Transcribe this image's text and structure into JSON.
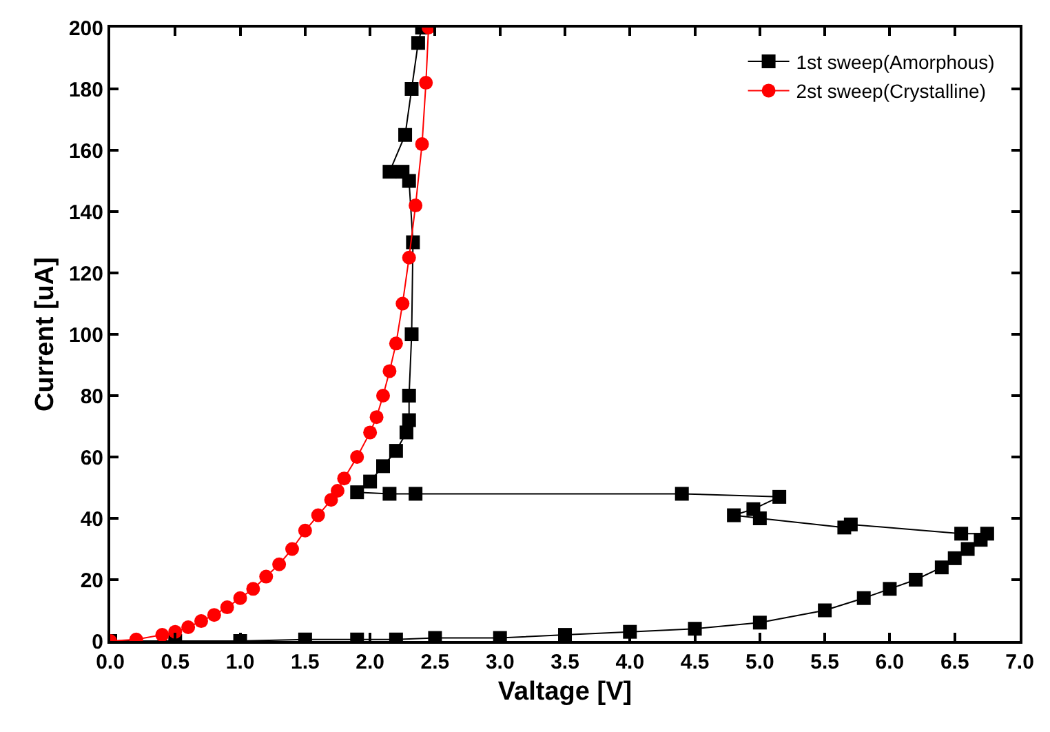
{
  "chart_data": {
    "type": "line",
    "xlabel": "Valtage [V]",
    "ylabel": "Current [uA]",
    "xlim": [
      0,
      7
    ],
    "ylim": [
      0,
      200
    ],
    "xticks": [
      {
        "value": 0,
        "label": "0.0"
      },
      {
        "value": 0.5,
        "label": "0.5"
      },
      {
        "value": 1,
        "label": "1.0"
      },
      {
        "value": 1.5,
        "label": "1.5"
      },
      {
        "value": 2,
        "label": "2.0"
      },
      {
        "value": 2.5,
        "label": "2.5"
      },
      {
        "value": 3,
        "label": "3.0"
      },
      {
        "value": 3.5,
        "label": "3.5"
      },
      {
        "value": 4,
        "label": "4.0"
      },
      {
        "value": 4.5,
        "label": "4.5"
      },
      {
        "value": 5,
        "label": "5.0"
      },
      {
        "value": 5.5,
        "label": "5.5"
      },
      {
        "value": 6,
        "label": "6.0"
      },
      {
        "value": 6.5,
        "label": "6.5"
      },
      {
        "value": 7,
        "label": "7.0"
      }
    ],
    "yticks": [
      0,
      20,
      40,
      60,
      80,
      100,
      120,
      140,
      160,
      180,
      200
    ],
    "grid": false,
    "legend": "top right",
    "line_style": "solid",
    "series": [
      {
        "name": "1st sweep(Amorphous)",
        "color": "#000000",
        "marker": "square",
        "x": [
          0,
          0.5,
          1,
          1.5,
          1.9,
          2.2,
          2.5,
          3,
          3.5,
          4,
          4.5,
          5,
          5.5,
          5.8,
          6,
          6.2,
          6.4,
          6.5,
          6.6,
          6.7,
          6.75,
          6.55,
          5.7,
          5.65,
          5,
          4.8,
          4.95,
          5.15,
          4.4,
          2.35,
          2.15,
          1.9,
          2,
          2.1,
          2.2,
          2.28,
          2.3,
          2.3,
          2.32,
          2.33,
          2.3,
          2.25,
          2.15,
          2.27,
          2.32,
          2.37,
          2.4
        ],
        "values": [
          0,
          0,
          0,
          0.5,
          0.5,
          0.5,
          1,
          1,
          2,
          3,
          4,
          6,
          10,
          14,
          17,
          20,
          24,
          27,
          30,
          33,
          35,
          35,
          38,
          37,
          40,
          41,
          43,
          47,
          48,
          48,
          48,
          48.5,
          52,
          57,
          62,
          68,
          72,
          80,
          100,
          130,
          150,
          153,
          153,
          165,
          180,
          195,
          200
        ]
      },
      {
        "name": "2st sweep(Crystalline)",
        "color": "#ff0000",
        "marker": "circle",
        "x": [
          0,
          0.2,
          0.4,
          0.5,
          0.6,
          0.7,
          0.8,
          0.9,
          1,
          1.1,
          1.2,
          1.3,
          1.4,
          1.5,
          1.6,
          1.7,
          1.75,
          1.8,
          1.9,
          2,
          2.05,
          2.1,
          2.15,
          2.2,
          2.25,
          2.3,
          2.35,
          2.4,
          2.43,
          2.45
        ],
        "values": [
          0,
          0.5,
          2,
          3,
          4.5,
          6.5,
          8.5,
          11,
          14,
          17,
          21,
          25,
          30,
          36,
          41,
          46,
          49,
          53,
          60,
          68,
          73,
          80,
          88,
          97,
          110,
          125,
          142,
          162,
          182,
          200
        ]
      }
    ]
  }
}
